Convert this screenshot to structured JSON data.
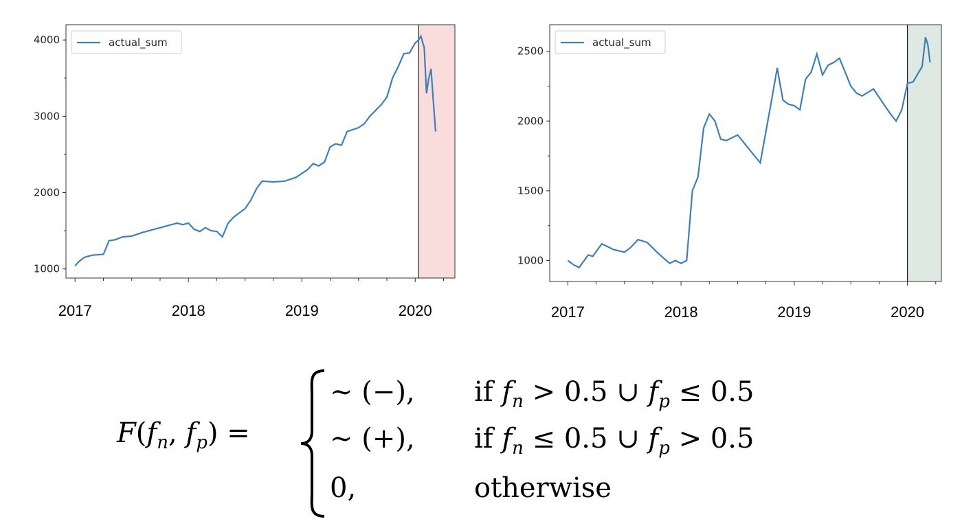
{
  "chart_data": [
    {
      "type": "line",
      "legend": {
        "entries": [
          "actual_sum"
        ],
        "position": "top-left"
      },
      "x_tick_labels": [
        "2017",
        "2018",
        "2019",
        "2020"
      ],
      "y_tick_labels": [
        "1000",
        "2000",
        "3000",
        "4000"
      ],
      "ylim": [
        880,
        4200
      ],
      "xlim": [
        2016.92,
        2020.35
      ],
      "highlight": {
        "x_start": 2020.03,
        "x_end": 2020.35,
        "color": "#f9dcdc"
      },
      "line_color": "#3f7fb5",
      "series": [
        {
          "name": "actual_sum",
          "x": [
            2017.0,
            2017.03,
            2017.08,
            2017.15,
            2017.25,
            2017.3,
            2017.35,
            2017.42,
            2017.5,
            2017.6,
            2017.7,
            2017.8,
            2017.9,
            2017.95,
            2018.0,
            2018.05,
            2018.1,
            2018.15,
            2018.2,
            2018.25,
            2018.3,
            2018.35,
            2018.4,
            2018.5,
            2018.55,
            2018.6,
            2018.65,
            2018.75,
            2018.85,
            2018.95,
            2019.0,
            2019.05,
            2019.1,
            2019.15,
            2019.2,
            2019.25,
            2019.3,
            2019.35,
            2019.4,
            2019.5,
            2019.55,
            2019.6,
            2019.7,
            2019.75,
            2019.8,
            2019.85,
            2019.9,
            2019.95,
            2020.0,
            2020.03,
            2020.05,
            2020.08,
            2020.1,
            2020.12,
            2020.14,
            2020.16,
            2020.18
          ],
          "y": [
            1040,
            1090,
            1150,
            1180,
            1190,
            1370,
            1380,
            1420,
            1430,
            1480,
            1520,
            1560,
            1600,
            1580,
            1600,
            1520,
            1490,
            1540,
            1500,
            1490,
            1420,
            1600,
            1680,
            1790,
            1900,
            2050,
            2150,
            2140,
            2150,
            2200,
            2250,
            2300,
            2380,
            2350,
            2400,
            2600,
            2640,
            2620,
            2800,
            2850,
            2900,
            3000,
            3150,
            3250,
            3500,
            3650,
            3820,
            3830,
            3960,
            4000,
            4050,
            3900,
            3300,
            3500,
            3620,
            3200,
            2800
          ]
        }
      ]
    },
    {
      "type": "line",
      "legend": {
        "entries": [
          "actual_sum"
        ],
        "position": "top-left"
      },
      "x_tick_labels": [
        "2017",
        "2018",
        "2019",
        "2020"
      ],
      "y_tick_labels": [
        "1000",
        "1500",
        "2000",
        "2500"
      ],
      "ylim": [
        850,
        2690
      ],
      "xlim": [
        2016.84,
        2020.3
      ],
      "highlight": {
        "x_start": 2020.0,
        "x_end": 2020.3,
        "color": "#dfe9e3"
      },
      "line_color": "#3f7fb5",
      "series": [
        {
          "name": "actual_sum",
          "x": [
            2017.0,
            2017.05,
            2017.1,
            2017.18,
            2017.22,
            2017.3,
            2017.4,
            2017.5,
            2017.55,
            2017.62,
            2017.7,
            2017.8,
            2017.9,
            2017.95,
            2018.0,
            2018.05,
            2018.1,
            2018.15,
            2018.2,
            2018.25,
            2018.3,
            2018.35,
            2018.4,
            2018.5,
            2018.55,
            2018.6,
            2018.65,
            2018.7,
            2018.8,
            2018.85,
            2018.9,
            2018.95,
            2019.0,
            2019.05,
            2019.1,
            2019.15,
            2019.2,
            2019.25,
            2019.3,
            2019.35,
            2019.4,
            2019.5,
            2019.55,
            2019.6,
            2019.7,
            2019.8,
            2019.85,
            2019.9,
            2019.95,
            2020.0,
            2020.05,
            2020.1,
            2020.13,
            2020.16,
            2020.18,
            2020.2
          ],
          "y": [
            1000,
            970,
            950,
            1040,
            1030,
            1120,
            1080,
            1060,
            1090,
            1150,
            1130,
            1050,
            980,
            1000,
            980,
            1000,
            1500,
            1600,
            1950,
            2050,
            2000,
            1870,
            1860,
            1900,
            1850,
            1800,
            1750,
            1700,
            2150,
            2380,
            2150,
            2120,
            2110,
            2080,
            2300,
            2350,
            2480,
            2330,
            2400,
            2420,
            2450,
            2250,
            2200,
            2180,
            2230,
            2110,
            2050,
            2000,
            2080,
            2270,
            2280,
            2350,
            2390,
            2600,
            2550,
            2420
          ]
        }
      ]
    }
  ],
  "formula": {
    "lhs_F": "F",
    "lhs_args": "(",
    "lhs_f": "f",
    "sub_n": "n",
    "sub_p": "p",
    "case1_value": "∼ (−),",
    "case1_if": "if",
    "case1_op1": "> 0.5 ∪",
    "case1_op2": "≤ 0.5",
    "case2_value": "∼ (+),",
    "case2_if": "if",
    "case2_op1": "≤ 0.5 ∪",
    "case2_op2": "> 0.5",
    "case3_value": "0,",
    "case3_cond": "otherwise"
  }
}
